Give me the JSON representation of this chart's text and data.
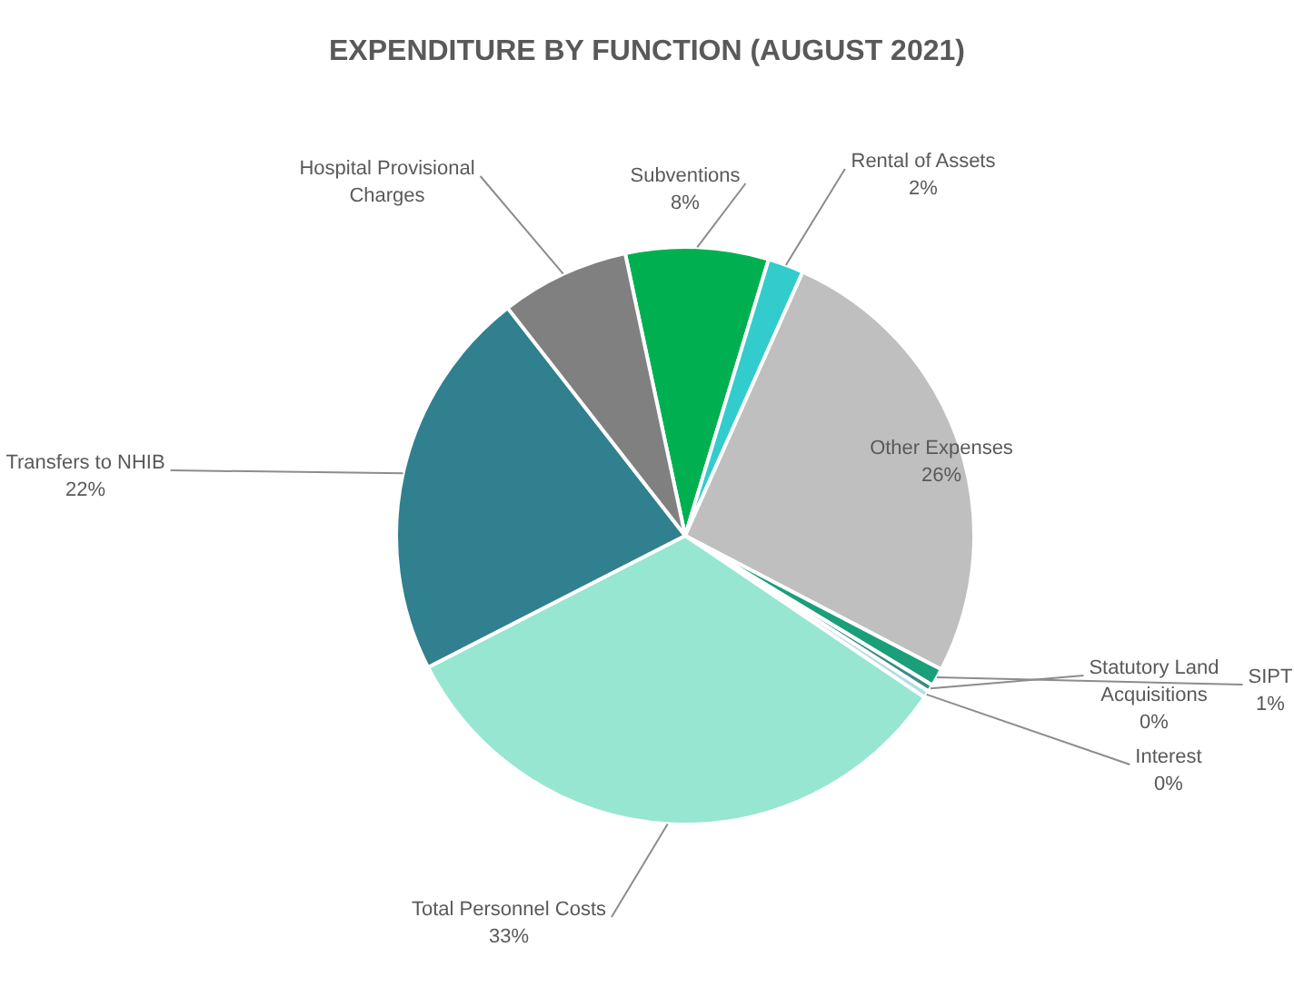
{
  "chart_data": {
    "type": "pie",
    "title": "EXPENDITURE BY FUNCTION (AUGUST 2021)",
    "categories": [
      "Subventions",
      "Rental of Assets",
      "Other Expenses",
      "SIPT",
      "Statutory Land Acquisitions",
      "Interest",
      "Total Personnel Costs",
      "Transfers to NHIB",
      "Hospital Provisional Charges"
    ],
    "values": [
      8,
      2,
      26,
      1,
      0.4,
      0.4,
      33,
      22,
      7.2
    ],
    "value_labels": [
      "8%",
      "2%",
      "26%",
      "1%",
      "0%",
      "0%",
      "33%",
      "22%",
      null
    ],
    "colors": [
      "#00b050",
      "#33cccc",
      "#bfbfbf",
      "#1a9f7a",
      "#3d8a8a",
      "#b4dce6",
      "#96e6d2",
      "#31808f",
      "#808080"
    ],
    "legend": false
  }
}
